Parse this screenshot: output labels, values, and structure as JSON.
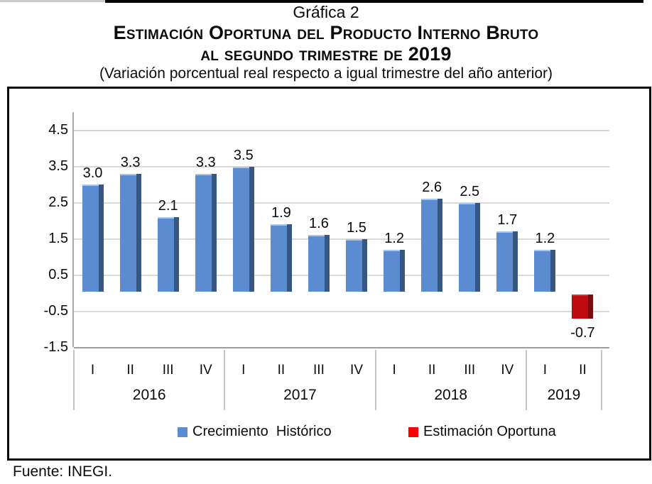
{
  "page": {
    "title_line1": "Gráfica 2",
    "title_line2": "Estimación Oportuna del Producto Interno Bruto",
    "title_line3_prefix": "al segundo trimestre de ",
    "title_line3_year": "2019",
    "subtitle": "(Variación porcentual real respecto a igual trimestre del año anterior)",
    "source": "Fuente: INEGI."
  },
  "colors": {
    "grid": "#d9d9d9",
    "bottom_axis": "#9e9e9e",
    "vertical_axis": "#ababab",
    "category_divider": "#c4c4c4",
    "box_border": "#050505",
    "text": "#0b0b0b"
  },
  "chart_data": {
    "type": "bar",
    "title": "Estimación Oportuna del Producto Interno Bruto al segundo trimestre de 2019",
    "subtitle": "(Variación porcentual real respecto a igual trimestre del año anterior)",
    "x": [
      "2016-I",
      "2016-II",
      "2016-III",
      "2016-IV",
      "2017-I",
      "2017-II",
      "2017-III",
      "2017-IV",
      "2018-I",
      "2018-II",
      "2018-III",
      "2018-IV",
      "2019-I",
      "2019-II"
    ],
    "quarter_labels": [
      "I",
      "II",
      "III",
      "IV",
      "I",
      "II",
      "III",
      "IV",
      "I",
      "II",
      "III",
      "IV",
      "I",
      "II"
    ],
    "year_groups": [
      {
        "label": "2016",
        "count": 4
      },
      {
        "label": "2017",
        "count": 4
      },
      {
        "label": "2018",
        "count": 4
      },
      {
        "label": "2019",
        "count": 2
      }
    ],
    "series": [
      {
        "name": "Crecimiento  Histórico",
        "color": "#5b8bd0",
        "edge_color": "#36577f",
        "highlight_color": "#a9c6e8",
        "legend_color": "#5b8bd0",
        "values": [
          3.0,
          3.3,
          2.1,
          3.3,
          3.5,
          1.9,
          1.6,
          1.5,
          1.2,
          2.6,
          2.5,
          1.7,
          1.2,
          null
        ]
      },
      {
        "name": "Estimación Oportuna",
        "color": "#be0b10",
        "edge_color": "#7a0b0e",
        "highlight_color": "#ce3436",
        "legend_color": "#ff0000",
        "values": [
          null,
          null,
          null,
          null,
          null,
          null,
          null,
          null,
          null,
          null,
          null,
          null,
          null,
          -0.7
        ]
      }
    ],
    "data_labels": [
      "3.0",
      "3.3",
      "2.1",
      "3.3",
      "3.5",
      "1.9",
      "1.6",
      "1.5",
      "1.2",
      "2.6",
      "2.5",
      "1.7",
      "1.2",
      "-0.7"
    ],
    "y_ticks": [
      4.5,
      3.5,
      2.5,
      1.5,
      0.5,
      -0.5,
      -1.5
    ],
    "y_tick_labels": [
      "4.5",
      "3.5",
      "2.5",
      "1.5",
      "0.5",
      "-0.5",
      "-1.5"
    ],
    "ylim": [
      -1.5,
      5.0
    ],
    "grid": true,
    "legend_position": "bottom"
  }
}
